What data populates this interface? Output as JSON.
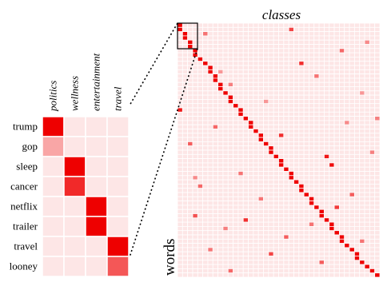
{
  "zoom": {
    "columns": [
      "politics",
      "wellness",
      "entertainment",
      "travel"
    ],
    "rows": [
      {
        "word": "trump",
        "values": [
          1.0,
          0,
          0,
          0
        ]
      },
      {
        "word": "gop",
        "values": [
          0.28,
          0,
          0,
          0
        ]
      },
      {
        "word": "sleep",
        "values": [
          0,
          1.0,
          0,
          0
        ]
      },
      {
        "word": "cancer",
        "values": [
          0,
          0.82,
          0,
          0
        ]
      },
      {
        "word": "netflix",
        "values": [
          0,
          0,
          1.0,
          0
        ]
      },
      {
        "word": "trailer",
        "values": [
          0,
          0,
          1.0,
          0
        ]
      },
      {
        "word": "travel",
        "values": [
          0,
          0,
          0,
          1.0
        ]
      },
      {
        "word": "looney",
        "values": [
          0,
          0,
          0,
          0.62
        ]
      }
    ]
  },
  "full": {
    "title": "classes",
    "ylabel": "words",
    "n_rows": 60,
    "n_cols": 40,
    "diagonal_pairs": [
      [
        0,
        0
      ],
      [
        1,
        0
      ],
      [
        2,
        1
      ],
      [
        3,
        1
      ],
      [
        4,
        2
      ],
      [
        5,
        2
      ],
      [
        6,
        3
      ],
      [
        7,
        3
      ],
      [
        8,
        4
      ],
      [
        9,
        5
      ],
      [
        10,
        6
      ],
      [
        11,
        6
      ],
      [
        12,
        7
      ],
      [
        13,
        7
      ],
      [
        14,
        8
      ],
      [
        15,
        8
      ],
      [
        16,
        9
      ],
      [
        17,
        10
      ],
      [
        18,
        10
      ],
      [
        19,
        11
      ],
      [
        20,
        12
      ],
      [
        21,
        12
      ],
      [
        22,
        13
      ],
      [
        23,
        14
      ],
      [
        24,
        14
      ],
      [
        25,
        15
      ],
      [
        26,
        16
      ],
      [
        27,
        16
      ],
      [
        28,
        17
      ],
      [
        29,
        18
      ],
      [
        30,
        18
      ],
      [
        31,
        19
      ],
      [
        32,
        20
      ],
      [
        33,
        20
      ],
      [
        34,
        21
      ],
      [
        35,
        22
      ],
      [
        36,
        22
      ],
      [
        37,
        23
      ],
      [
        38,
        24
      ],
      [
        39,
        24
      ],
      [
        40,
        25
      ],
      [
        41,
        26
      ],
      [
        42,
        26
      ],
      [
        43,
        27
      ],
      [
        44,
        28
      ],
      [
        45,
        28
      ],
      [
        46,
        29
      ],
      [
        47,
        30
      ],
      [
        48,
        30
      ],
      [
        49,
        31
      ],
      [
        50,
        32
      ],
      [
        51,
        32
      ],
      [
        52,
        33
      ],
      [
        53,
        34
      ],
      [
        54,
        35
      ],
      [
        55,
        35
      ],
      [
        56,
        36
      ],
      [
        57,
        37
      ],
      [
        58,
        38
      ],
      [
        59,
        39
      ]
    ],
    "extra_cells": [
      [
        1,
        22,
        0.7
      ],
      [
        2,
        5,
        0.5
      ],
      [
        6,
        32,
        0.55
      ],
      [
        9,
        24,
        0.8
      ],
      [
        11,
        8,
        0.35
      ],
      [
        14,
        10,
        0.45
      ],
      [
        16,
        36,
        0.35
      ],
      [
        20,
        0,
        0.9
      ],
      [
        22,
        39,
        0.45
      ],
      [
        23,
        33,
        0.4
      ],
      [
        24,
        7,
        0.55
      ],
      [
        26,
        20,
        0.8
      ],
      [
        28,
        2,
        0.6
      ],
      [
        31,
        29,
        0.9
      ],
      [
        33,
        30,
        0.95
      ],
      [
        35,
        12,
        0.5
      ],
      [
        38,
        4,
        0.55
      ],
      [
        40,
        34,
        0.6
      ],
      [
        41,
        16,
        0.5
      ],
      [
        43,
        31,
        0.75
      ],
      [
        45,
        3,
        0.65
      ],
      [
        46,
        13,
        0.8
      ],
      [
        47,
        26,
        0.5
      ],
      [
        48,
        9,
        0.45
      ],
      [
        50,
        21,
        0.6
      ],
      [
        51,
        36,
        0.5
      ],
      [
        53,
        6,
        0.5
      ],
      [
        54,
        18,
        0.7
      ],
      [
        56,
        28,
        0.6
      ],
      [
        58,
        10,
        0.55
      ],
      [
        4,
        37,
        0.4
      ],
      [
        12,
        27,
        0.5
      ],
      [
        18,
        17,
        0.35
      ],
      [
        30,
        38,
        0.45
      ],
      [
        36,
        3,
        0.4
      ]
    ]
  },
  "colors": {
    "low": "#fde6e6",
    "high": "#ee0000",
    "grid": "#ffffff"
  }
}
